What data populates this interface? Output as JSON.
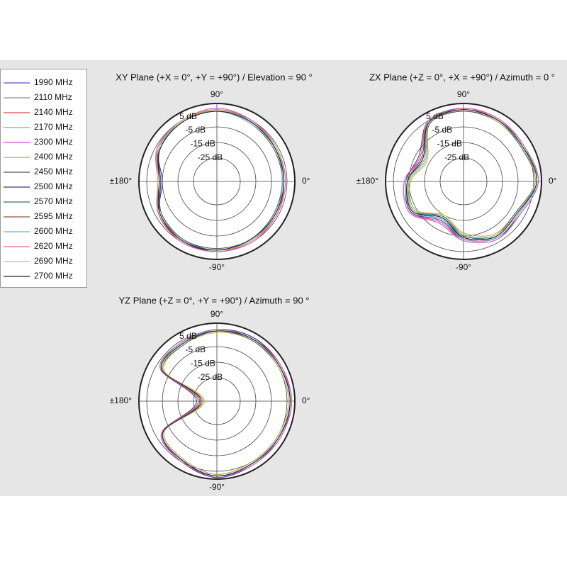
{
  "legend": {
    "series": [
      {
        "name": "1990 MHz",
        "color": "#4a5bd6"
      },
      {
        "name": "2110 MHz",
        "color": "#8a8a8a"
      },
      {
        "name": "2140 MHz",
        "color": "#e04848"
      },
      {
        "name": "2170 MHz",
        "color": "#40c0d0"
      },
      {
        "name": "2300 MHz",
        "color": "#d048d0"
      },
      {
        "name": "2400 MHz",
        "color": "#b0b048"
      },
      {
        "name": "2450 MHz",
        "color": "#555555"
      },
      {
        "name": "2500 MHz",
        "color": "#3030a0"
      },
      {
        "name": "2570 MHz",
        "color": "#406868"
      },
      {
        "name": "2595 MHz",
        "color": "#a05030"
      },
      {
        "name": "2600 MHz",
        "color": "#60b0e0"
      },
      {
        "name": "2620 MHz",
        "color": "#e060a8"
      },
      {
        "name": "2690 MHz",
        "color": "#c0c060"
      },
      {
        "name": "2700 MHz",
        "color": "#222222"
      }
    ]
  },
  "chart_data": [
    {
      "type": "polar",
      "title": "XY Plane (+X = 0°, +Y = +90°) / Elevation = 90 °",
      "rlim": [
        -40,
        10
      ],
      "rticks": [
        {
          "value": 5,
          "label": "5 dB"
        },
        {
          "value": -5,
          "label": "-5 dB"
        },
        {
          "value": -15,
          "label": "-15 dB"
        },
        {
          "value": -25,
          "label": "-25 dB"
        }
      ],
      "angle_ticks": [
        {
          "value": 90,
          "label": "90°"
        },
        {
          "value": 0,
          "label": "0°"
        },
        {
          "value": 180,
          "label": "±180°"
        },
        {
          "value": -90,
          "label": "-90°"
        }
      ],
      "angles": [
        0,
        30,
        60,
        90,
        120,
        150,
        180,
        210,
        240,
        270,
        300,
        330
      ],
      "series": [
        {
          "values": [
            3,
            4,
            4,
            6,
            5,
            3,
            -4,
            2,
            4,
            5,
            4,
            3
          ]
        },
        {
          "values": [
            2,
            3,
            4,
            5,
            5,
            2,
            -3,
            1,
            4,
            4,
            3,
            3
          ]
        },
        {
          "values": [
            3,
            3,
            5,
            6,
            4,
            3,
            -2,
            2,
            5,
            4,
            4,
            4
          ]
        },
        {
          "values": [
            2,
            3,
            4,
            6,
            5,
            3,
            -3,
            2,
            4,
            4,
            4,
            3
          ]
        },
        {
          "values": [
            4,
            4,
            5,
            7,
            5,
            4,
            -2,
            3,
            5,
            5,
            5,
            4
          ]
        },
        {
          "values": [
            3,
            3,
            4,
            6,
            4,
            3,
            -3,
            2,
            4,
            4,
            3,
            3
          ]
        },
        {
          "values": [
            2,
            2,
            3,
            5,
            4,
            2,
            -4,
            1,
            3,
            3,
            3,
            2
          ]
        },
        {
          "values": [
            3,
            4,
            5,
            6,
            5,
            3,
            -5,
            2,
            4,
            5,
            4,
            3
          ]
        },
        {
          "values": [
            2,
            3,
            4,
            5,
            4,
            2,
            -3,
            1,
            3,
            4,
            3,
            2
          ]
        },
        {
          "values": [
            3,
            3,
            4,
            6,
            5,
            3,
            -3,
            3,
            4,
            4,
            4,
            3
          ]
        },
        {
          "values": [
            2,
            3,
            3,
            5,
            4,
            3,
            -2,
            2,
            4,
            4,
            3,
            3
          ]
        },
        {
          "values": [
            4,
            4,
            5,
            6,
            5,
            4,
            -3,
            3,
            5,
            5,
            4,
            4
          ]
        },
        {
          "values": [
            3,
            4,
            4,
            6,
            5,
            3,
            -2,
            2,
            4,
            4,
            4,
            3
          ]
        },
        {
          "values": [
            3,
            3,
            4,
            5,
            4,
            2,
            -3,
            2,
            4,
            4,
            3,
            3
          ]
        }
      ]
    },
    {
      "type": "polar",
      "title": "ZX Plane (+Z = 0°, +X = +90°) / Azimuth = 0 °",
      "rlim": [
        -40,
        10
      ],
      "rticks": [
        {
          "value": 5,
          "label": "5 dB"
        },
        {
          "value": -5,
          "label": "-5 dB"
        },
        {
          "value": -15,
          "label": "-15 dB"
        },
        {
          "value": -25,
          "label": "-25 dB"
        }
      ],
      "angle_ticks": [
        {
          "value": 90,
          "label": "90°"
        },
        {
          "value": 0,
          "label": "0°"
        },
        {
          "value": 180,
          "label": "±180°"
        },
        {
          "value": -90,
          "label": "-90°"
        }
      ],
      "angles": [
        0,
        30,
        60,
        90,
        120,
        150,
        180,
        210,
        240,
        270,
        300,
        330
      ],
      "series": [
        {
          "values": [
            7,
            4,
            5,
            6,
            4,
            -10,
            -4,
            -2,
            -12,
            -4,
            1,
            0
          ]
        },
        {
          "values": [
            6,
            3,
            5,
            6,
            3,
            -12,
            -5,
            -4,
            -14,
            -6,
            0,
            -1
          ]
        },
        {
          "values": [
            7,
            5,
            6,
            7,
            4,
            -8,
            -3,
            -1,
            -10,
            -3,
            2,
            1
          ]
        },
        {
          "values": [
            8,
            4,
            5,
            6,
            5,
            -11,
            -4,
            -3,
            -13,
            -5,
            1,
            0
          ]
        },
        {
          "values": [
            7,
            5,
            5,
            7,
            4,
            -9,
            -2,
            0,
            -9,
            -2,
            3,
            1
          ]
        },
        {
          "values": [
            6,
            4,
            4,
            6,
            3,
            -13,
            -6,
            -4,
            -15,
            -7,
            -1,
            -1
          ]
        },
        {
          "values": [
            7,
            4,
            5,
            6,
            4,
            -10,
            -4,
            -2,
            -12,
            -4,
            1,
            0
          ]
        },
        {
          "values": [
            8,
            5,
            6,
            7,
            5,
            -7,
            -3,
            -1,
            -11,
            -3,
            2,
            2
          ]
        },
        {
          "values": [
            6,
            3,
            4,
            5,
            3,
            -12,
            -5,
            -3,
            -14,
            -5,
            0,
            -1
          ]
        },
        {
          "values": [
            7,
            4,
            5,
            6,
            4,
            -9,
            -4,
            -2,
            -13,
            -4,
            1,
            0
          ]
        },
        {
          "values": [
            7,
            5,
            5,
            6,
            4,
            -11,
            -3,
            -2,
            -12,
            -3,
            2,
            1
          ]
        },
        {
          "values": [
            8,
            5,
            6,
            7,
            5,
            -8,
            -2,
            0,
            -10,
            -2,
            3,
            2
          ]
        },
        {
          "values": [
            6,
            4,
            4,
            6,
            4,
            -12,
            -5,
            -3,
            -15,
            -6,
            0,
            0
          ]
        },
        {
          "values": [
            7,
            4,
            5,
            6,
            4,
            -10,
            -4,
            -2,
            -13,
            -4,
            1,
            0
          ]
        }
      ]
    },
    {
      "type": "polar",
      "title": "YZ Plane (+Z = 0°, +Y = +90°) / Azimuth = 90 °",
      "rlim": [
        -40,
        10
      ],
      "rticks": [
        {
          "value": 5,
          "label": "5 dB"
        },
        {
          "value": -5,
          "label": "-5 dB"
        },
        {
          "value": -15,
          "label": "-15 dB"
        },
        {
          "value": -25,
          "label": "-25 dB"
        }
      ],
      "angle_ticks": [
        {
          "value": 90,
          "label": "90°"
        },
        {
          "value": 0,
          "label": "0°"
        },
        {
          "value": 180,
          "label": "±180°"
        },
        {
          "value": -90,
          "label": "-90°"
        }
      ],
      "angles": [
        0,
        30,
        60,
        90,
        120,
        150,
        180,
        210,
        240,
        270,
        300,
        330
      ],
      "series": [
        {
          "values": [
            7,
            6,
            6,
            5,
            3,
            1,
            -30,
            0,
            4,
            8,
            6,
            6
          ]
        },
        {
          "values": [
            6,
            5,
            6,
            5,
            2,
            0,
            -29,
            -1,
            3,
            7,
            5,
            5
          ]
        },
        {
          "values": [
            7,
            6,
            7,
            6,
            3,
            1,
            -31,
            1,
            4,
            8,
            6,
            6
          ]
        },
        {
          "values": [
            8,
            6,
            6,
            5,
            4,
            2,
            -28,
            0,
            5,
            8,
            7,
            6
          ]
        },
        {
          "values": [
            7,
            7,
            6,
            6,
            3,
            1,
            -30,
            1,
            4,
            9,
            6,
            7
          ]
        },
        {
          "values": [
            6,
            5,
            5,
            4,
            2,
            -1,
            -32,
            -1,
            3,
            7,
            5,
            5
          ]
        },
        {
          "values": [
            7,
            6,
            6,
            5,
            3,
            1,
            -30,
            0,
            4,
            8,
            6,
            6
          ]
        },
        {
          "values": [
            8,
            7,
            7,
            6,
            4,
            2,
            -27,
            1,
            5,
            9,
            7,
            7
          ]
        },
        {
          "values": [
            6,
            5,
            5,
            5,
            2,
            0,
            -31,
            -1,
            3,
            7,
            5,
            5
          ]
        },
        {
          "values": [
            7,
            6,
            6,
            5,
            3,
            1,
            -29,
            0,
            4,
            8,
            6,
            6
          ]
        },
        {
          "values": [
            7,
            6,
            6,
            6,
            3,
            2,
            -30,
            0,
            4,
            8,
            6,
            6
          ]
        },
        {
          "values": [
            8,
            7,
            6,
            6,
            4,
            2,
            -28,
            1,
            5,
            8,
            7,
            7
          ]
        },
        {
          "values": [
            6,
            5,
            6,
            5,
            3,
            0,
            -31,
            -1,
            3,
            7,
            5,
            5
          ]
        },
        {
          "values": [
            7,
            6,
            6,
            5,
            3,
            1,
            -30,
            0,
            4,
            8,
            6,
            6
          ]
        }
      ]
    }
  ]
}
